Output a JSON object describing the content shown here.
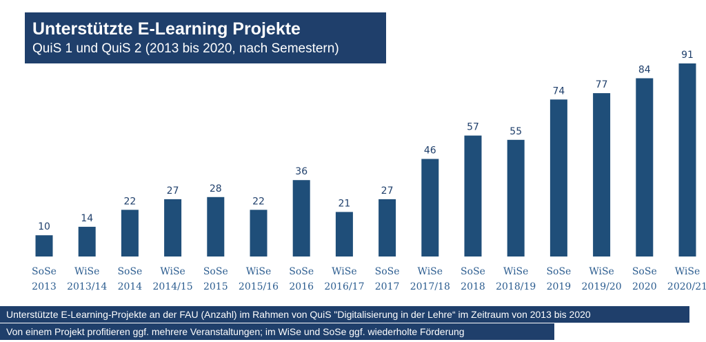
{
  "header": {
    "title": "Unterstützte E-Learning Projekte",
    "subtitle": "QuiS 1 und QuiS 2 (2013 bis 2020, nach Semestern)"
  },
  "footer": {
    "line1": "Unterstützte E-Learning-Projekte an der FAU (Anzahl) im Rahmen von QuiS \"Digitalisierung in der Lehre“ im Zeitraum von 2013 bis 2020",
    "line2": "Von einem Projekt profitieren ggf. mehrere Veranstaltungen; im WiSe und SoSe ggf. wiederholte Förderung"
  },
  "colors": {
    "bar": "#1f4e79",
    "header_bg": "#1f3f6b",
    "category_text": "#2b5c8f"
  },
  "chart_data": {
    "type": "bar",
    "title": "Unterstützte E-Learning Projekte",
    "subtitle": "QuiS 1 und QuiS 2 (2013 bis 2020, nach Semestern)",
    "categories": [
      [
        "SoSe",
        "2013"
      ],
      [
        "WiSe",
        "2013/14"
      ],
      [
        "SoSe",
        "2014"
      ],
      [
        "WiSe",
        "2014/15"
      ],
      [
        "SoSe",
        "2015"
      ],
      [
        "WiSe",
        "2015/16"
      ],
      [
        "SoSe",
        "2016"
      ],
      [
        "WiSe",
        "2016/17"
      ],
      [
        "SoSe",
        "2017"
      ],
      [
        "WiSe",
        "2017/18"
      ],
      [
        "SoSe",
        "2018"
      ],
      [
        "WiSe",
        "2018/19"
      ],
      [
        "SoSe",
        "2019"
      ],
      [
        "WiSe",
        "2019/20"
      ],
      [
        "SoSe",
        "2020"
      ],
      [
        "WiSe",
        "2020/21"
      ]
    ],
    "values": [
      10,
      14,
      22,
      27,
      28,
      22,
      36,
      21,
      27,
      46,
      57,
      55,
      74,
      77,
      84,
      91
    ],
    "xlabel": "",
    "ylabel": "",
    "ylim": [
      0,
      91
    ],
    "grid": false,
    "data_labels": true
  }
}
